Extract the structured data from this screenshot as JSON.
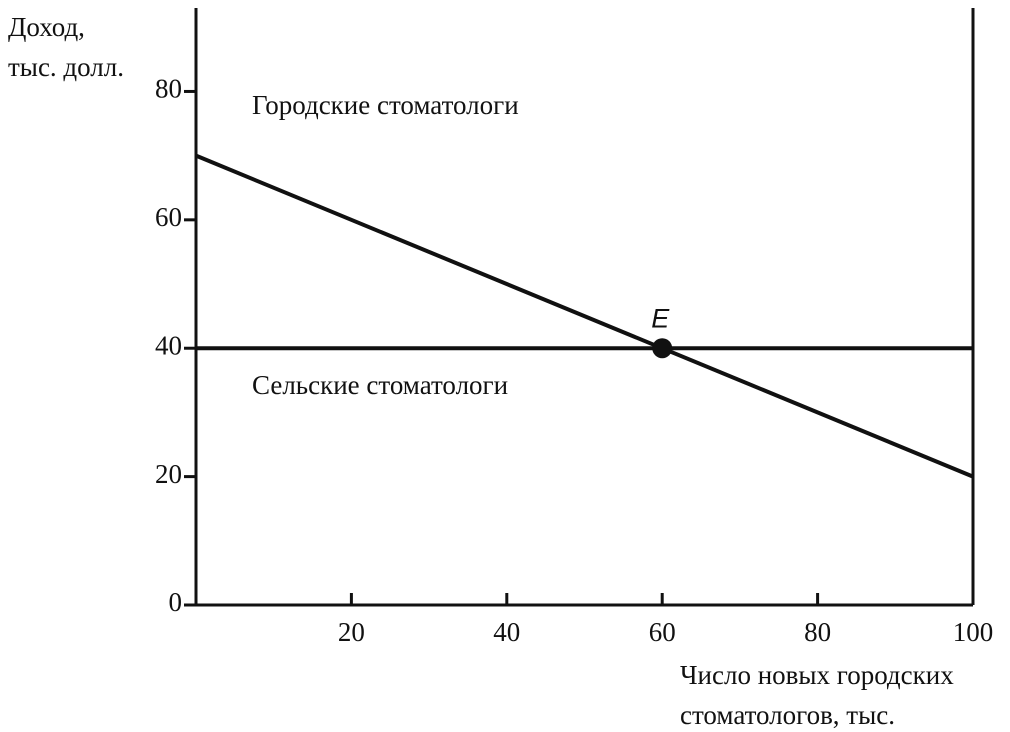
{
  "chart_data": {
    "type": "line",
    "y_label": [
      "Доход,",
      "тыс. долл."
    ],
    "x_label": [
      "Число новых городских",
      "стоматологов, тыс."
    ],
    "x": [
      0,
      100
    ],
    "series": [
      {
        "name": "Городские стоматологи",
        "color": "#111111",
        "values": [
          70,
          20
        ]
      },
      {
        "name": "Сельские стоматологи",
        "color": "#111111",
        "values": [
          40,
          40
        ]
      }
    ],
    "points": [
      {
        "label": "E",
        "x": 60,
        "y": 40
      }
    ],
    "xlim": [
      0,
      100
    ],
    "xticks": [
      20,
      40,
      60,
      80,
      100
    ],
    "ylim": [
      0,
      93
    ],
    "yticks": [
      0,
      20,
      40,
      60,
      80
    ]
  }
}
